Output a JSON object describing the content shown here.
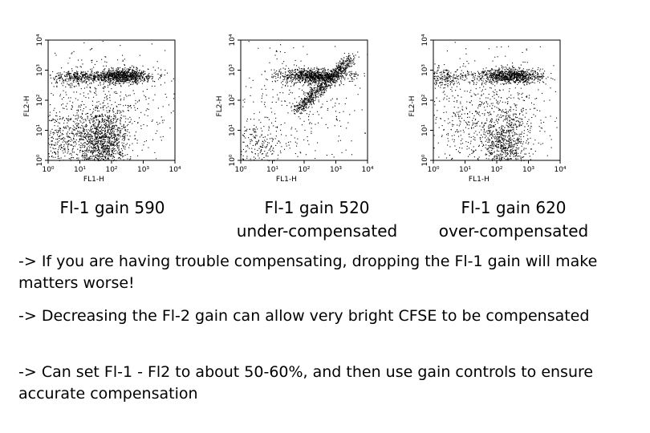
{
  "chart_data": [
    {
      "type": "scatter",
      "xlabel": "FL1-H",
      "ylabel": "FL2-H",
      "xscale": "log",
      "yscale": "log",
      "xlim": [
        1,
        10000
      ],
      "ylim": [
        1,
        10000
      ],
      "xticks": [
        "10⁰",
        "10¹",
        "10²",
        "10³",
        "10⁴"
      ],
      "yticks": [
        "10⁰",
        "10¹",
        "10²",
        "10³",
        "10⁴"
      ],
      "caption": [
        "Fl-1 gain 590"
      ],
      "populations": [
        {
          "x": 3.0,
          "y": 5.0,
          "spread": [
            0.6,
            0.5
          ],
          "count": 450
        },
        {
          "x": 55,
          "y": 4.5,
          "spread": [
            0.4,
            0.55
          ],
          "count": 1100
        },
        {
          "x": 8.0,
          "y": 600,
          "spread": [
            0.4,
            0.12
          ],
          "count": 300
        },
        {
          "x": 200,
          "y": 650,
          "spread": [
            0.5,
            0.12
          ],
          "count": 900
        },
        {
          "x": 60,
          "y": 60,
          "spread": [
            1.2,
            1.0
          ],
          "count": 500
        }
      ]
    },
    {
      "type": "scatter",
      "xlabel": "FL1-H",
      "ylabel": "FL2-H",
      "xscale": "log",
      "yscale": "log",
      "xlim": [
        1,
        10000
      ],
      "ylim": [
        1,
        10000
      ],
      "xticks": [
        "10⁰",
        "10¹",
        "10²",
        "10³",
        "10⁴"
      ],
      "yticks": [
        "10⁰",
        "10¹",
        "10²",
        "10³",
        "10⁴"
      ],
      "caption": [
        "Fl-1 gain 520",
        "under-compensated"
      ],
      "populations": [
        {
          "x": 3.0,
          "y": 3.0,
          "spread": [
            0.5,
            0.5
          ],
          "count": 250
        },
        {
          "x": 200,
          "y": 650,
          "spread": [
            0.55,
            0.12
          ],
          "count": 900
        },
        {
          "diagonal": true,
          "from": [
            60,
            50
          ],
          "to": [
            3000,
            2500
          ],
          "spread": [
            0.1,
            0.1
          ],
          "count": 700
        },
        {
          "x": 60,
          "y": 60,
          "spread": [
            1.2,
            1.0
          ],
          "count": 300
        }
      ]
    },
    {
      "type": "scatter",
      "xlabel": "FL1-H",
      "ylabel": "FL2-H",
      "xscale": "log",
      "yscale": "log",
      "xlim": [
        1,
        10000
      ],
      "ylim": [
        1,
        10000
      ],
      "xticks": [
        "10⁰",
        "10¹",
        "10²",
        "10³",
        "10⁴"
      ],
      "yticks": [
        "10⁰",
        "10¹",
        "10²",
        "10³",
        "10⁴"
      ],
      "caption": [
        "Fl-1 gain 620",
        "over-compensated"
      ],
      "populations": [
        {
          "x": 2.5,
          "y": 600,
          "spread": [
            0.35,
            0.15
          ],
          "count": 200
        },
        {
          "x": 250,
          "y": 650,
          "spread": [
            0.5,
            0.12
          ],
          "count": 900
        },
        {
          "x": 180,
          "y": 4.0,
          "spread": [
            0.35,
            0.6
          ],
          "count": 650
        },
        {
          "x": 30,
          "y": 8,
          "spread": [
            0.8,
            0.9
          ],
          "count": 250
        },
        {
          "x": 60,
          "y": 60,
          "spread": [
            1.2,
            1.0
          ],
          "count": 450
        }
      ]
    }
  ],
  "notes": [
    "-> If you are having trouble compensating, dropping the Fl-1 gain will make matters worse!",
    "-> Decreasing the Fl-2 gain can allow very bright CFSE to be compensated",
    "-> Can set Fl-1 - Fl2 to about 50-60%, and then use gain controls to ensure accurate compensation"
  ]
}
